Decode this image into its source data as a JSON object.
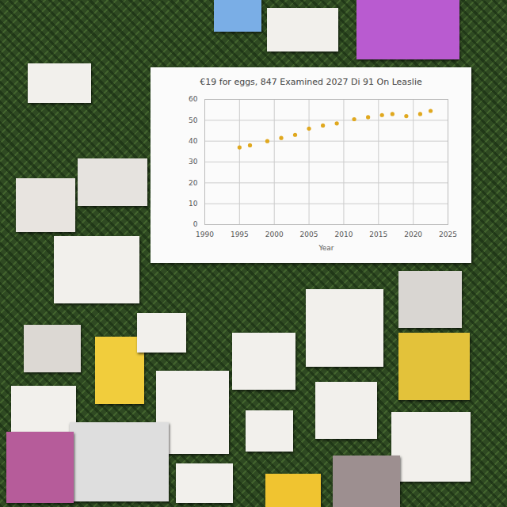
{
  "chart_data": {
    "type": "scatter",
    "title": "€19 for eggs, 847 Examined 2027 Di 91 On Leaslie",
    "xlabel": "Year",
    "x": [
      1995,
      1996.5,
      1999,
      2001,
      2003,
      2005,
      2007,
      2009,
      2011.5,
      2013.5,
      2015.5,
      2017,
      2019,
      2021,
      2022.5
    ],
    "values": [
      37,
      38,
      40,
      41.5,
      43,
      46,
      47.5,
      48.5,
      50.5,
      51.5,
      52.5,
      53,
      52,
      53,
      54.5
    ],
    "color": "#e0a81f",
    "marker": "circle",
    "xlim": [
      1990,
      2025
    ],
    "xticks": [
      1990,
      1995,
      2000,
      2005,
      2010,
      2015,
      2020,
      2025
    ],
    "ylim": [
      0,
      60
    ],
    "yticks": [
      0,
      10,
      20,
      30,
      40,
      50,
      60
    ],
    "grid": true
  }
}
